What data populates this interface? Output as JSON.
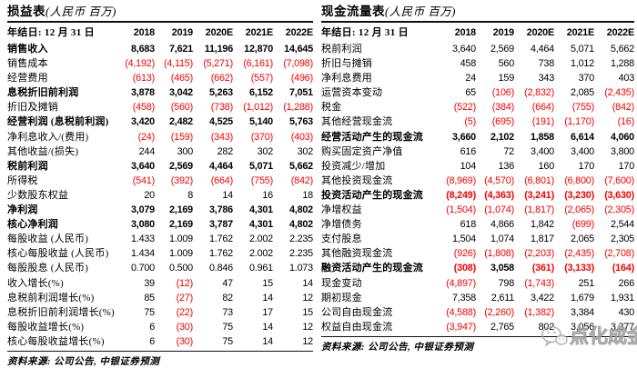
{
  "colors": {
    "negative": "#f40000",
    "text": "#000000",
    "rule": "#111111",
    "watermark_gray": "#9d9d9d"
  },
  "watermark": {
    "text": "点化成金",
    "icon": "wechat-icon"
  },
  "tables": [
    {
      "name": "income-statement",
      "title": "损益表",
      "title_note": "(人民币 百万)",
      "header": {
        "label": "年结日: 12 月 31 日",
        "years": [
          "2018",
          "2019",
          "2020E",
          "2021E",
          "2022E"
        ]
      },
      "rows": [
        {
          "label": "销售收入",
          "bold": true,
          "values": [
            "8,683",
            "7,621",
            "11,196",
            "12,870",
            "14,645"
          ]
        },
        {
          "label": "销售成本",
          "bold": false,
          "values": [
            "(4,192)",
            "(4,115)",
            "(5,271)",
            "(6,161)",
            "(7,098)"
          ]
        },
        {
          "label": "经营费用",
          "bold": false,
          "values": [
            "(613)",
            "(465)",
            "(662)",
            "(557)",
            "(496)"
          ]
        },
        {
          "label": "息税折旧前利润",
          "bold": true,
          "values": [
            "3,878",
            "3,042",
            "5,263",
            "6,152",
            "7,051"
          ]
        },
        {
          "label": "折旧及摊销",
          "bold": false,
          "values": [
            "(458)",
            "(560)",
            "(738)",
            "(1,012)",
            "(1,288)"
          ]
        },
        {
          "label": "经营利润 (息税前利润)",
          "bold": true,
          "values": [
            "3,420",
            "2,482",
            "4,525",
            "5,140",
            "5,763"
          ]
        },
        {
          "label": "净利息收入/(费用)",
          "bold": false,
          "values": [
            "(24)",
            "(159)",
            "(343)",
            "(370)",
            "(403)"
          ]
        },
        {
          "label": "其他收益/(损失)",
          "bold": false,
          "values": [
            "244",
            "300",
            "282",
            "302",
            "302"
          ]
        },
        {
          "label": "税前利润",
          "bold": true,
          "values": [
            "3,640",
            "2,569",
            "4,464",
            "5,071",
            "5,662"
          ]
        },
        {
          "label": "所得税",
          "bold": false,
          "values": [
            "(541)",
            "(392)",
            "(664)",
            "(755)",
            "(842)"
          ]
        },
        {
          "label": "少数股东权益",
          "bold": false,
          "values": [
            "20",
            "8",
            "14",
            "16",
            "18"
          ]
        },
        {
          "label": "净利润",
          "bold": true,
          "values": [
            "3,079",
            "2,169",
            "3,786",
            "4,301",
            "4,802"
          ]
        },
        {
          "label": "核心净利润",
          "bold": true,
          "values": [
            "3,080",
            "2,169",
            "3,787",
            "4,301",
            "4,802"
          ]
        },
        {
          "label": "每股收益 (人民币)",
          "bold": false,
          "values": [
            "1.433",
            "1.009",
            "1.762",
            "2.002",
            "2.235"
          ]
        },
        {
          "label": "核心每股收益 (人民币)",
          "bold": false,
          "values": [
            "1.434",
            "1.009",
            "1.762",
            "2.002",
            "2.235"
          ]
        },
        {
          "label": "每股股息 (人民币)",
          "bold": false,
          "values": [
            "0.700",
            "0.500",
            "0.846",
            "0.961",
            "1.073"
          ]
        },
        {
          "label": "收入增长(%)",
          "bold": false,
          "values": [
            "39",
            "(12)",
            "47",
            "15",
            "14"
          ]
        },
        {
          "label": "息税前利润增长(%)",
          "bold": false,
          "values": [
            "85",
            "(27)",
            "82",
            "14",
            "12"
          ]
        },
        {
          "label": "息税折旧前利润增长(%)",
          "bold": false,
          "values": [
            "75",
            "(22)",
            "73",
            "17",
            "15"
          ]
        },
        {
          "label": "每股收益增长(%)",
          "bold": false,
          "values": [
            "6",
            "(30)",
            "75",
            "14",
            "12"
          ]
        },
        {
          "label": "核心每股收益增长(%)",
          "bold": false,
          "values": [
            "6",
            "(30)",
            "75",
            "14",
            "12"
          ]
        }
      ],
      "source": "资料来源: 公司公告, 中银证券预测"
    },
    {
      "name": "cash-flow-statement",
      "title": "现金流量表",
      "title_note": "(人民币 百万)",
      "header": {
        "label": "年结日: 12 月 31 日",
        "years": [
          "2018",
          "2019",
          "2020E",
          "2021E",
          "2022E"
        ]
      },
      "rows": [
        {
          "label": "税前利润",
          "bold": false,
          "values": [
            "3,640",
            "2,569",
            "4,464",
            "5,071",
            "5,662"
          ]
        },
        {
          "label": "折旧与摊销",
          "bold": false,
          "values": [
            "458",
            "560",
            "738",
            "1,012",
            "1,288"
          ]
        },
        {
          "label": "净利息费用",
          "bold": false,
          "values": [
            "24",
            "159",
            "343",
            "370",
            "403"
          ]
        },
        {
          "label": "运营资本变动",
          "bold": false,
          "values": [
            "65",
            "(106)",
            "(2,832)",
            "2,085",
            "(2,435)"
          ]
        },
        {
          "label": "税金",
          "bold": false,
          "values": [
            "(522)",
            "(384)",
            "(664)",
            "(755)",
            "(842)"
          ]
        },
        {
          "label": "其他经营现金流",
          "bold": false,
          "values": [
            "(5)",
            "(695)",
            "(191)",
            "(1,170)",
            "(16)"
          ]
        },
        {
          "label": "经营活动产生的现金流",
          "bold": true,
          "values": [
            "3,660",
            "2,102",
            "1,858",
            "6,614",
            "4,060"
          ]
        },
        {
          "label": "购买固定资产净值",
          "bold": false,
          "values": [
            "616",
            "72",
            "3,400",
            "3,400",
            "3,800"
          ]
        },
        {
          "label": "投资减少/增加",
          "bold": false,
          "values": [
            "104",
            "136",
            "160",
            "170",
            "170"
          ]
        },
        {
          "label": "其他投资现金流",
          "bold": false,
          "values": [
            "(8,969)",
            "(4,570)",
            "(6,801)",
            "(6,800)",
            "(7,600)"
          ]
        },
        {
          "label": "投资活动产生的现金流",
          "bold": true,
          "values": [
            "(8,249)",
            "(4,363)",
            "(3,241)",
            "(3,230)",
            "(3,630)"
          ]
        },
        {
          "label": "净增权益",
          "bold": false,
          "values": [
            "(1,504)",
            "(1,074)",
            "(1,817)",
            "(2,065)",
            "(2,305)"
          ]
        },
        {
          "label": "净增债务",
          "bold": false,
          "values": [
            "618",
            "4,866",
            "1,842",
            "(699)",
            "2,544"
          ]
        },
        {
          "label": "支付股息",
          "bold": false,
          "values": [
            "1,504",
            "1,074",
            "1,817",
            "2,065",
            "2,305"
          ]
        },
        {
          "label": "其他融资现金流",
          "bold": false,
          "values": [
            "(926)",
            "(1,808)",
            "(2,203)",
            "(2,435)",
            "(2,708)"
          ]
        },
        {
          "label": "融资活动产生的现金流",
          "bold": true,
          "values": [
            "(308)",
            "3,058",
            "(361)",
            "(3,133)",
            "(164)"
          ]
        },
        {
          "label": "现金变动",
          "bold": false,
          "values": [
            "(4,897)",
            "798",
            "(1,743)",
            "251",
            "266"
          ]
        },
        {
          "label": "期初现金",
          "bold": false,
          "values": [
            "7,358",
            "2,611",
            "3,422",
            "1,679",
            "1,931"
          ]
        },
        {
          "label": "公司自由现金流",
          "bold": false,
          "values": [
            "(4,588)",
            "(2,260)",
            "(1,382)",
            "3,384",
            "430"
          ]
        },
        {
          "label": "权益自由现金流",
          "bold": false,
          "values": [
            "(3,947)",
            "2,765",
            "802",
            "3,056",
            "3,377"
          ]
        }
      ],
      "source": "资料来源: 公司公告, 中银证券预测"
    }
  ]
}
